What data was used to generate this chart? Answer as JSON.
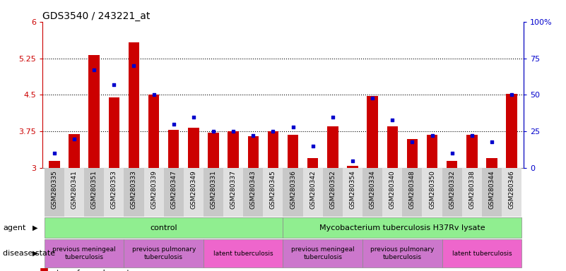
{
  "title": "GDS3540 / 243221_at",
  "samples": [
    "GSM280335",
    "GSM280341",
    "GSM280351",
    "GSM280353",
    "GSM280333",
    "GSM280339",
    "GSM280347",
    "GSM280349",
    "GSM280331",
    "GSM280337",
    "GSM280343",
    "GSM280345",
    "GSM280336",
    "GSM280342",
    "GSM280352",
    "GSM280354",
    "GSM280334",
    "GSM280340",
    "GSM280348",
    "GSM280350",
    "GSM280332",
    "GSM280338",
    "GSM280344",
    "GSM280346"
  ],
  "red_values": [
    3.15,
    3.7,
    5.32,
    4.45,
    5.58,
    4.5,
    3.78,
    3.82,
    3.72,
    3.75,
    3.65,
    3.75,
    3.68,
    3.2,
    3.85,
    3.05,
    4.48,
    3.85,
    3.6,
    3.68,
    3.15,
    3.68,
    3.2,
    4.52
  ],
  "blue_values": [
    10,
    20,
    67,
    57,
    70,
    50,
    30,
    35,
    25,
    25,
    22,
    25,
    28,
    15,
    35,
    5,
    48,
    33,
    18,
    22,
    10,
    22,
    18,
    50
  ],
  "ylim_left": [
    3.0,
    6.0
  ],
  "ylim_right": [
    0,
    100
  ],
  "yticks_left": [
    3.0,
    3.75,
    4.5,
    5.25,
    6.0
  ],
  "ytick_labels_left": [
    "3",
    "3.75",
    "4.5",
    "5.25",
    "6"
  ],
  "yticks_right": [
    0,
    25,
    50,
    75,
    100
  ],
  "ytick_labels_right": [
    "0",
    "25",
    "50",
    "75",
    "100%"
  ],
  "agent_groups": [
    {
      "label": "control",
      "start": 0,
      "end": 12,
      "color": "#90EE90"
    },
    {
      "label": "Mycobacterium tuberculosis H37Rv lysate",
      "start": 12,
      "end": 24,
      "color": "#90EE90"
    }
  ],
  "disease_groups": [
    {
      "label": "previous meningeal\ntuberculosis",
      "start": 0,
      "end": 4,
      "color": "#CC77CC"
    },
    {
      "label": "previous pulmonary\ntuberculosis",
      "start": 4,
      "end": 8,
      "color": "#CC77CC"
    },
    {
      "label": "latent tuberculosis",
      "start": 8,
      "end": 12,
      "color": "#EE66CC"
    },
    {
      "label": "previous meningeal\ntuberculosis",
      "start": 12,
      "end": 16,
      "color": "#CC77CC"
    },
    {
      "label": "previous pulmonary\ntuberculosis",
      "start": 16,
      "end": 20,
      "color": "#CC77CC"
    },
    {
      "label": "latent tuberculosis",
      "start": 20,
      "end": 24,
      "color": "#EE66CC"
    }
  ],
  "bar_color": "#CC0000",
  "dot_color": "#0000CC",
  "grid_color": "#000000",
  "bg_color": "#FFFFFF",
  "left_axis_color": "#CC0000",
  "right_axis_color": "#0000CC",
  "tick_bg_even": "#C8C8C8",
  "tick_bg_odd": "#E0E0E0"
}
